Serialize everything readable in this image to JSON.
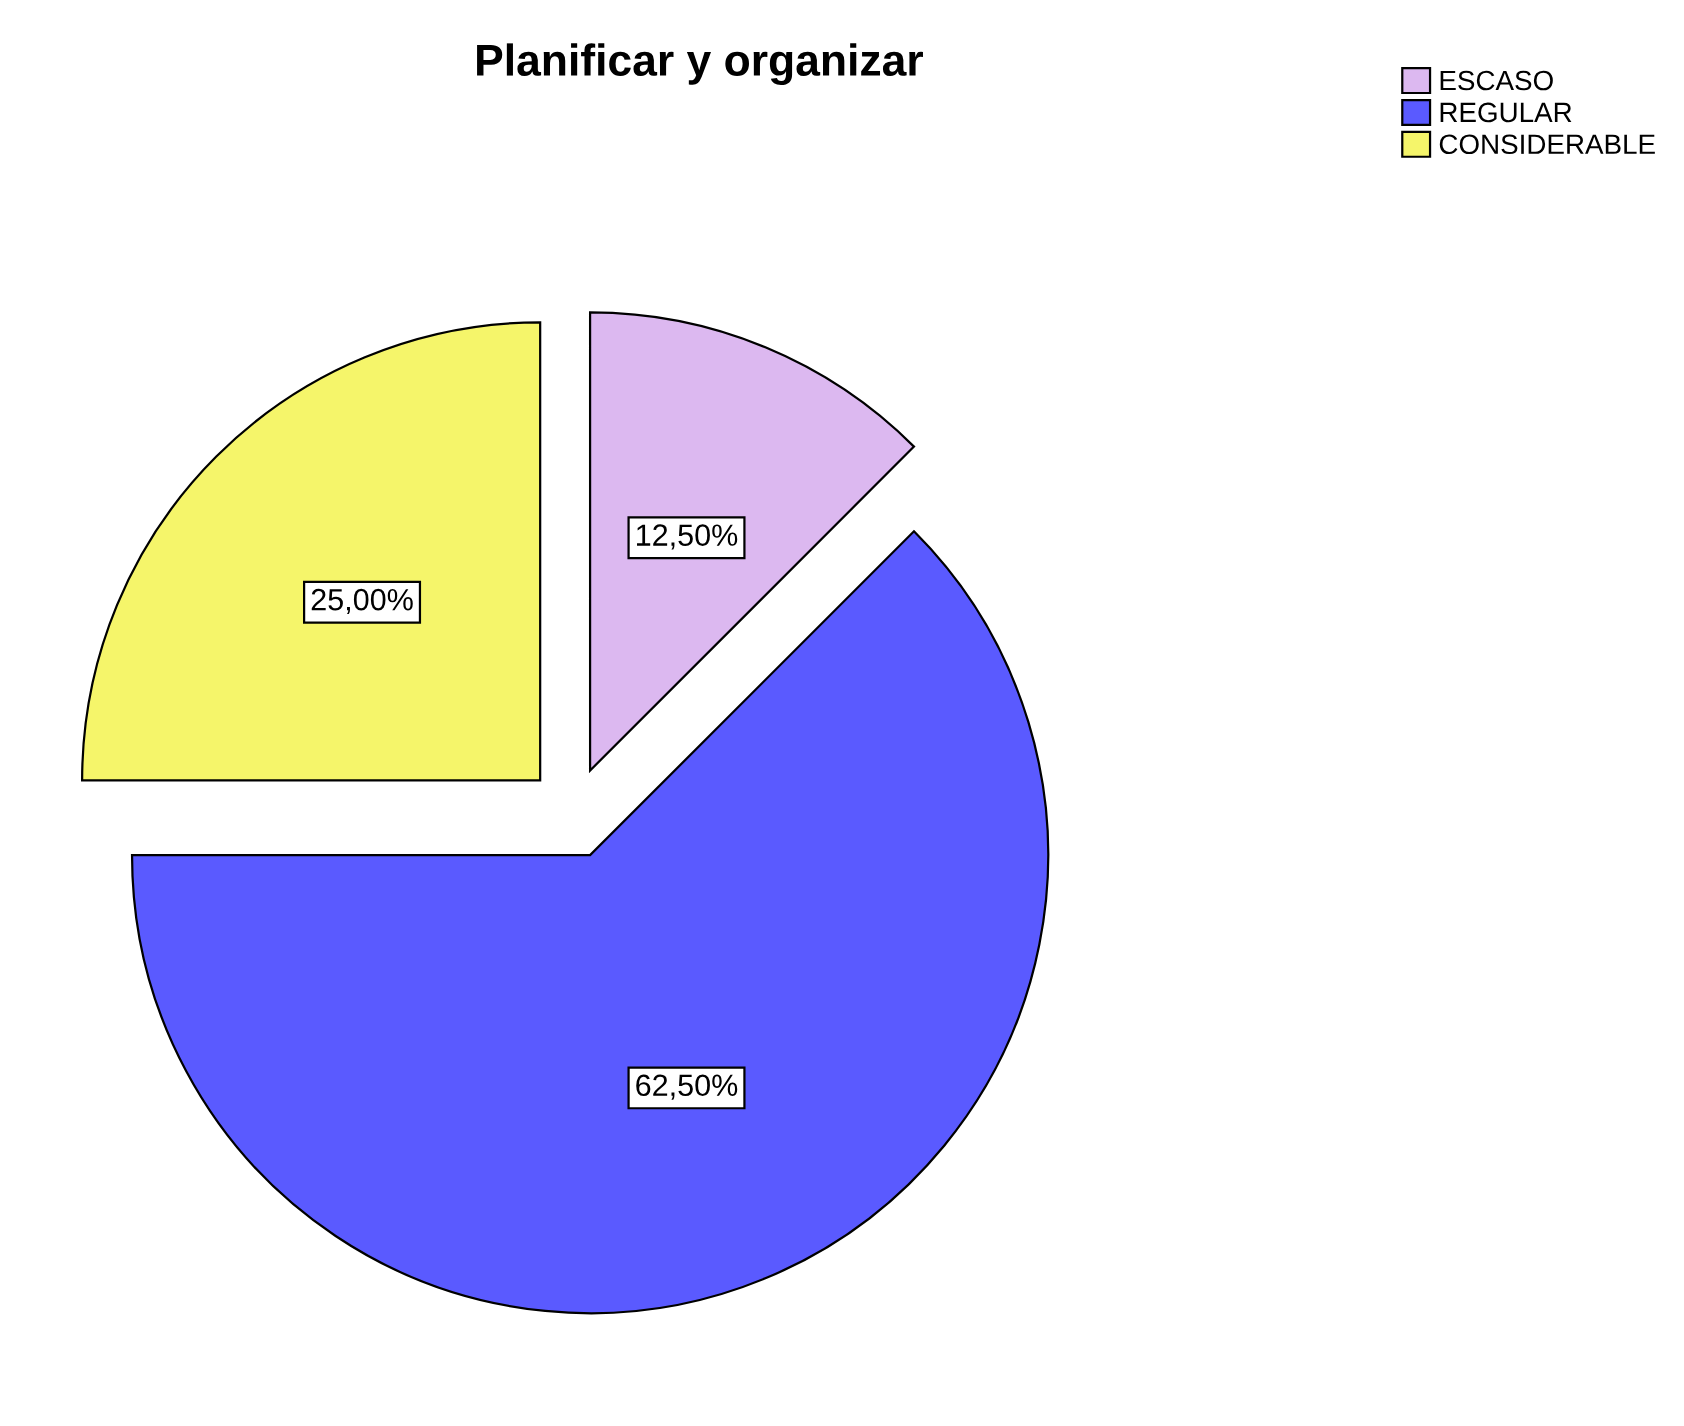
{
  "chart_data": {
    "type": "pie",
    "title": "Planificar y organizar",
    "categories": [
      "ESCASO",
      "REGULAR",
      "CONSIDERABLE"
    ],
    "values": [
      12.5,
      62.5,
      25
    ],
    "colors": [
      "#dcb8f0",
      "#5a5aff",
      "#f5f56a"
    ],
    "value_labels": [
      "12,50%",
      "62,50%",
      "25,00%"
    ],
    "legend": "top right"
  }
}
